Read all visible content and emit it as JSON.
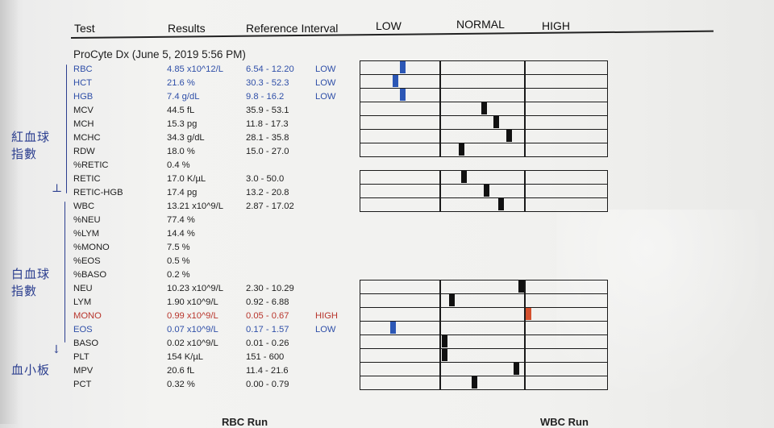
{
  "headers": {
    "test": "Test",
    "results": "Results",
    "reference": "Reference Interval",
    "low": "LOW",
    "normal": "NORMAL",
    "high": "HIGH"
  },
  "subtitle": "ProCyte Dx (June 5, 2019 5:56 PM)",
  "rows": [
    {
      "name": "RBC",
      "result": "4.85 x10^12/L",
      "ref": "6.54 - 12.20",
      "flag": "LOW",
      "color": "#2f4fa8",
      "marker": 0.16
    },
    {
      "name": "HCT",
      "result": "21.6 %",
      "ref": "30.3 - 52.3",
      "flag": "LOW",
      "color": "#2f4fa8",
      "marker": 0.13
    },
    {
      "name": "HGB",
      "result": "7.4 g/dL",
      "ref": "9.8 - 16.2",
      "flag": "LOW",
      "color": "#2f4fa8",
      "marker": 0.16
    },
    {
      "name": "MCV",
      "result": "44.5 fL",
      "ref": "35.9 - 53.1",
      "flag": "",
      "color": "",
      "marker": 0.49
    },
    {
      "name": "MCH",
      "result": "15.3 pg",
      "ref": "11.8 - 17.3",
      "flag": "",
      "color": "",
      "marker": 0.54
    },
    {
      "name": "MCHC",
      "result": "34.3 g/dL",
      "ref": "28.1 - 35.8",
      "flag": "",
      "color": "",
      "marker": 0.59
    },
    {
      "name": "RDW",
      "result": "18.0 %",
      "ref": "15.0 - 27.0",
      "flag": "",
      "color": "",
      "marker": 0.4
    },
    {
      "name": "%RETIC",
      "result": "0.4 %",
      "ref": "",
      "flag": "",
      "color": "",
      "marker": null
    },
    {
      "name": "RETIC",
      "result": "17.0 K/µL",
      "ref": "3.0 - 50.0",
      "flag": "",
      "color": "",
      "marker": 0.41
    },
    {
      "name": "RETIC-HGB",
      "result": "17.4 pg",
      "ref": "13.2 - 20.8",
      "flag": "",
      "color": "",
      "marker": 0.5
    },
    {
      "name": "WBC",
      "result": "13.21 x10^9/L",
      "ref": "2.87 - 17.02",
      "flag": "",
      "color": "",
      "marker": 0.56
    },
    {
      "name": "%NEU",
      "result": "77.4 %",
      "ref": "",
      "flag": "",
      "color": "",
      "marker": null
    },
    {
      "name": "%LYM",
      "result": "14.4 %",
      "ref": "",
      "flag": "",
      "color": "",
      "marker": null
    },
    {
      "name": "%MONO",
      "result": "7.5 %",
      "ref": "",
      "flag": "",
      "color": "",
      "marker": null
    },
    {
      "name": "%EOS",
      "result": "0.5 %",
      "ref": "",
      "flag": "",
      "color": "",
      "marker": null
    },
    {
      "name": "%BASO",
      "result": "0.2 %",
      "ref": "",
      "flag": "",
      "color": "",
      "marker": null
    },
    {
      "name": "NEU",
      "result": "10.23 x10^9/L",
      "ref": "2.30 - 10.29",
      "flag": "",
      "color": "",
      "marker": 0.64
    },
    {
      "name": "LYM",
      "result": "1.90 x10^9/L",
      "ref": "0.92 - 6.88",
      "flag": "",
      "color": "",
      "marker": 0.36
    },
    {
      "name": "MONO",
      "result": "0.99 x10^9/L",
      "ref": "0.05 - 0.67",
      "flag": "HIGH",
      "color": "#b8352c",
      "marker": 0.67
    },
    {
      "name": "EOS",
      "result": "0.07 x10^9/L",
      "ref": "0.17 - 1.57",
      "flag": "LOW",
      "color": "#2f4fa8",
      "marker": 0.12
    },
    {
      "name": "BASO",
      "result": "0.02 x10^9/L",
      "ref": "0.01 - 0.26",
      "flag": "",
      "color": "",
      "marker": 0.33
    },
    {
      "name": "PLT",
      "result": "154 K/µL",
      "ref": "151 - 600",
      "flag": "",
      "color": "",
      "marker": 0.33
    },
    {
      "name": "MPV",
      "result": "20.6 fL",
      "ref": "11.4 - 21.6",
      "flag": "",
      "color": "",
      "marker": 0.62
    },
    {
      "name": "PCT",
      "result": "0.32 %",
      "ref": "0.00 - 0.79",
      "flag": "",
      "color": "",
      "marker": 0.45
    }
  ],
  "handwriting": {
    "rbc_note": "紅血球指數",
    "wbc_note": "白血球指數",
    "plt_note": "血小板"
  },
  "footer": {
    "left": "RBC Run",
    "right": "WBC Run"
  }
}
